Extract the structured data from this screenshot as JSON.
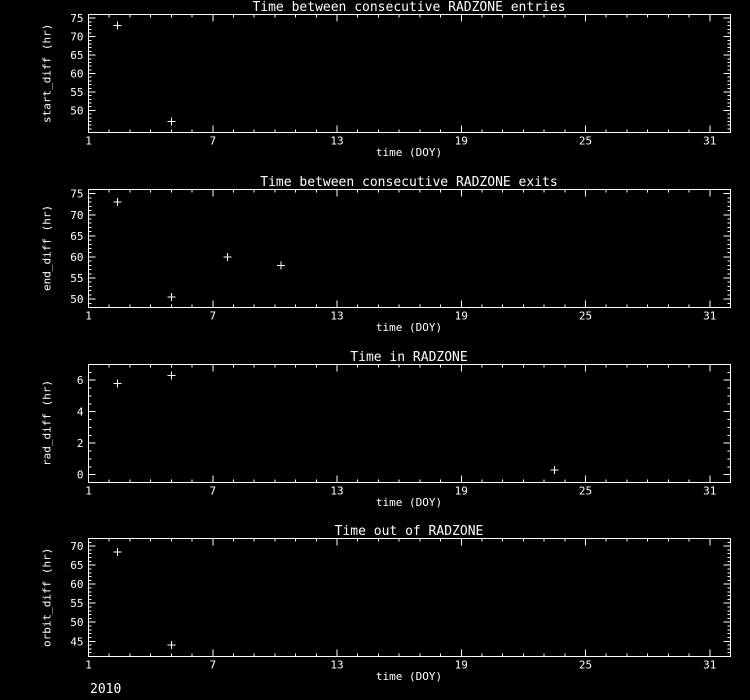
{
  "page": {
    "background": "#000000",
    "foreground": "#ffffff",
    "year_label": "2010"
  },
  "chart_data": [
    {
      "type": "scatter",
      "title": "Time between consecutive RADZONE entries",
      "xlabel": "time (DOY)",
      "ylabel": "start_diff (hr)",
      "marker": "plus",
      "marker_color": "#ffffff",
      "axis_color": "#ffffff",
      "xlim": [
        1,
        32
      ],
      "ylim": [
        44,
        76
      ],
      "xticks": [
        1,
        7,
        13,
        19,
        25,
        31
      ],
      "yticks": [
        50,
        55,
        60,
        65,
        70,
        75
      ],
      "x_minor_step": 1,
      "y_minor_step": 1,
      "points": [
        [
          2.4,
          73
        ],
        [
          5.0,
          47
        ]
      ]
    },
    {
      "type": "scatter",
      "title": "Time between consecutive RADZONE exits",
      "xlabel": "time (DOY)",
      "ylabel": "end_diff (hr)",
      "marker": "plus",
      "marker_color": "#ffffff",
      "axis_color": "#ffffff",
      "xlim": [
        1,
        32
      ],
      "ylim": [
        48,
        76
      ],
      "xticks": [
        1,
        7,
        13,
        19,
        25,
        31
      ],
      "yticks": [
        50,
        55,
        60,
        65,
        70,
        75
      ],
      "x_minor_step": 1,
      "y_minor_step": 1,
      "points": [
        [
          2.4,
          73
        ],
        [
          5.0,
          50.5
        ],
        [
          7.7,
          60
        ],
        [
          10.3,
          58
        ]
      ]
    },
    {
      "type": "scatter",
      "title": "Time in RADZONE",
      "xlabel": "time (DOY)",
      "ylabel": "rad_diff (hr)",
      "marker": "plus",
      "marker_color": "#ffffff",
      "axis_color": "#ffffff",
      "xlim": [
        1,
        32
      ],
      "ylim": [
        -0.5,
        7
      ],
      "xticks": [
        1,
        7,
        13,
        19,
        25,
        31
      ],
      "yticks": [
        0,
        2,
        4,
        6
      ],
      "x_minor_step": 1,
      "y_minor_step": 0.5,
      "points": [
        [
          2.4,
          5.8
        ],
        [
          5.0,
          6.3
        ],
        [
          23.5,
          0.3
        ]
      ]
    },
    {
      "type": "scatter",
      "title": "Time out of RADZONE",
      "xlabel": "time (DOY)",
      "ylabel": "orbit_diff (hr)",
      "marker": "plus",
      "marker_color": "#ffffff",
      "axis_color": "#ffffff",
      "xlim": [
        1,
        32
      ],
      "ylim": [
        41,
        72
      ],
      "xticks": [
        1,
        7,
        13,
        19,
        25,
        31
      ],
      "yticks": [
        45,
        50,
        55,
        60,
        65,
        70
      ],
      "x_minor_step": 1,
      "y_minor_step": 1,
      "points": [
        [
          2.4,
          68.5
        ],
        [
          5.0,
          44
        ]
      ]
    }
  ]
}
